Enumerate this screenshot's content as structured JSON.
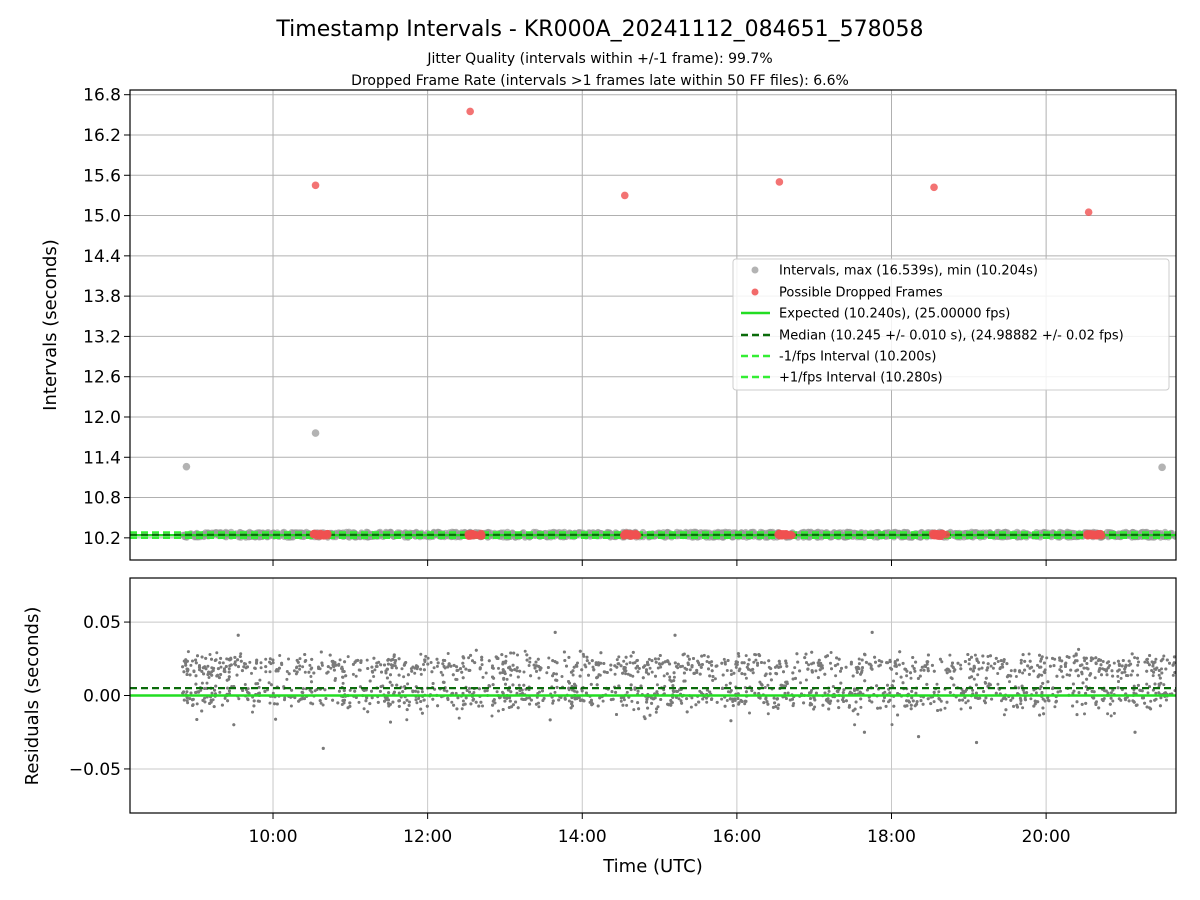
{
  "chart_data": [
    {
      "type": "scatter",
      "title": "Timestamp Intervals - KR000A_20241112_084651_578058",
      "subtitle_lines": [
        "Jitter Quality (intervals within +/-1 frame): 99.7%",
        "Dropped Frame Rate (intervals >1 frames late within 50 FF files): 6.6%"
      ],
      "ylabel": "Intervals (seconds)",
      "ylim": [
        9.87,
        16.87
      ],
      "xlim_hours": [
        8.15,
        21.68
      ],
      "yticks": [
        10.2,
        10.8,
        11.4,
        12.0,
        12.6,
        13.2,
        13.8,
        14.4,
        15.0,
        15.6,
        16.2,
        16.8
      ],
      "ytick_labels": [
        "10.2",
        "10.8",
        "11.4",
        "12.0",
        "12.6",
        "13.2",
        "13.8",
        "14.4",
        "15.0",
        "15.6",
        "16.2",
        "16.8"
      ],
      "grid": true,
      "legend_position": "center-right",
      "legend": [
        {
          "label": "Intervals, max (16.539s), min (10.204s)",
          "color": "#999999",
          "kind": "marker"
        },
        {
          "label": "Possible Dropped Frames",
          "color": "#f05050",
          "kind": "marker"
        },
        {
          "label": "Expected (10.240s), (25.00000 fps)",
          "color": "#22dd22",
          "kind": "solid"
        },
        {
          "label": "Median (10.245 +/- 0.010 s), (24.98882 +/- 0.02 fps)",
          "color": "#0a6b0a",
          "kind": "dashed"
        },
        {
          "label": "-1/fps Interval (10.200s)",
          "color": "#33ee33",
          "kind": "dashed"
        },
        {
          "label": "+1/fps Interval (10.280s)",
          "color": "#33ee33",
          "kind": "dashed"
        }
      ],
      "reference_lines": {
        "expected": 10.24,
        "median": 10.245,
        "minus_one_fps": 10.2,
        "plus_one_fps": 10.28
      },
      "interval_band": {
        "x_start": 8.83,
        "x_end": 21.68,
        "y_min": 10.204,
        "y_max": 10.29
      },
      "interval_outliers": [
        {
          "x": 8.88,
          "y": 11.26
        },
        {
          "x": 10.55,
          "y": 11.76
        },
        {
          "x": 21.5,
          "y": 11.25
        }
      ],
      "dropped_frames_high": [
        {
          "x": 10.55,
          "y": 15.45
        },
        {
          "x": 12.55,
          "y": 16.55
        },
        {
          "x": 14.55,
          "y": 15.3
        },
        {
          "x": 16.55,
          "y": 15.5
        },
        {
          "x": 18.55,
          "y": 15.42
        },
        {
          "x": 20.55,
          "y": 15.05
        }
      ],
      "dropped_frame_clusters": [
        {
          "x_start": 10.52,
          "x_end": 10.72,
          "y": 10.245
        },
        {
          "x_start": 12.52,
          "x_end": 12.72,
          "y": 10.245
        },
        {
          "x_start": 14.52,
          "x_end": 14.72,
          "y": 10.245
        },
        {
          "x_start": 16.52,
          "x_end": 16.72,
          "y": 10.245
        },
        {
          "x_start": 18.52,
          "x_end": 18.72,
          "y": 10.245
        },
        {
          "x_start": 20.52,
          "x_end": 20.72,
          "y": 10.245
        }
      ],
      "colors": {
        "interval": "#999999",
        "dropped": "#f05050",
        "expected": "#22dd22",
        "median": "#0a6b0a",
        "fps_bounds": "#33ee33",
        "grid": "#b0b0b0"
      }
    },
    {
      "type": "scatter",
      "xlabel": "Time (UTC)",
      "ylabel": "Residuals (seconds)",
      "ylim": [
        -0.08,
        0.08
      ],
      "xlim_hours": [
        8.15,
        21.68
      ],
      "yticks": [
        -0.05,
        0.0,
        0.05
      ],
      "ytick_labels": [
        "−0.05",
        "0.00",
        "0.05"
      ],
      "xticks_hours": [
        10,
        12,
        14,
        16,
        18,
        20
      ],
      "xtick_labels": [
        "10:00",
        "12:00",
        "14:00",
        "16:00",
        "18:00",
        "20:00"
      ],
      "grid": true,
      "reference_lines": {
        "expected": 0.0,
        "median": 0.005
      },
      "residual_band": {
        "x_start": 8.83,
        "x_end": 21.68,
        "y_low": -0.02,
        "y_high": 0.03
      },
      "residual_clusters": [
        0.0,
        0.02
      ],
      "residual_outliers": [
        {
          "x": 9.55,
          "y": 0.041
        },
        {
          "x": 10.65,
          "y": -0.036
        },
        {
          "x": 13.65,
          "y": 0.043
        },
        {
          "x": 15.2,
          "y": 0.041
        },
        {
          "x": 17.75,
          "y": 0.043
        },
        {
          "x": 19.1,
          "y": -0.032
        },
        {
          "x": 17.65,
          "y": -0.025
        },
        {
          "x": 18.35,
          "y": -0.028
        },
        {
          "x": 21.15,
          "y": -0.025
        }
      ],
      "colors": {
        "residual": "#7a7a7a",
        "expected": "#22dd22",
        "median": "#0a6b0a",
        "grid": "#c8c8c8"
      }
    }
  ]
}
